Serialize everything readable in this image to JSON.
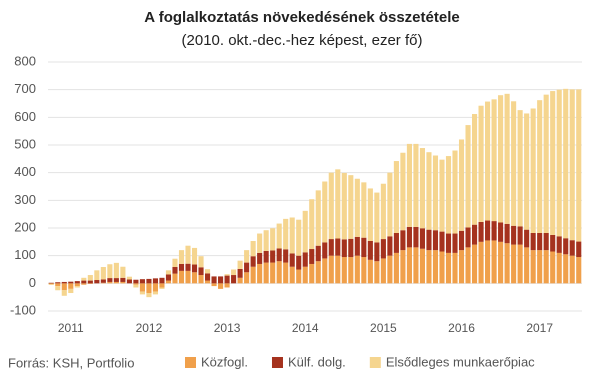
{
  "chart_data": {
    "type": "stacked-bar",
    "title": "A foglalkoztatás növekedésének összetétele",
    "subtitle": "(2010. okt.-dec.-hez képest, ezer fő)",
    "source": "Forrás: KSH, Portfolio",
    "categories": [
      null,
      null,
      null,
      "2011",
      null,
      null,
      null,
      null,
      null,
      null,
      null,
      null,
      null,
      null,
      null,
      "2012",
      null,
      null,
      null,
      null,
      null,
      null,
      null,
      null,
      null,
      null,
      null,
      "2013",
      null,
      null,
      null,
      null,
      null,
      null,
      null,
      null,
      null,
      null,
      null,
      "2014",
      null,
      null,
      null,
      null,
      null,
      null,
      null,
      null,
      null,
      null,
      null,
      "2015",
      null,
      null,
      null,
      null,
      null,
      null,
      null,
      null,
      null,
      null,
      null,
      "2016",
      null,
      null,
      null,
      null,
      null,
      null,
      null,
      null,
      null,
      null,
      null,
      "2017",
      null,
      null,
      null,
      null,
      null,
      null
    ],
    "series": [
      {
        "name": "Közfogl.",
        "color": "#f0a04b",
        "values": [
          -3,
          -10,
          -25,
          -20,
          -10,
          -5,
          -2,
          0,
          2,
          5,
          5,
          5,
          0,
          -5,
          -30,
          -35,
          -30,
          -15,
          10,
          35,
          45,
          45,
          40,
          30,
          10,
          -10,
          -20,
          -15,
          0,
          20,
          40,
          60,
          70,
          75,
          75,
          80,
          75,
          60,
          50,
          60,
          70,
          80,
          90,
          100,
          100,
          95,
          95,
          100,
          95,
          85,
          80,
          90,
          100,
          110,
          120,
          130,
          130,
          125,
          120,
          120,
          115,
          110,
          110,
          120,
          130,
          140,
          150,
          155,
          155,
          150,
          145,
          140,
          140,
          130,
          120,
          120,
          120,
          115,
          110,
          105,
          100,
          95
        ]
      },
      {
        "name": "Külf. dolg.",
        "color": "#a5321e",
        "values": [
          2,
          4,
          5,
          6,
          8,
          10,
          10,
          12,
          12,
          14,
          14,
          15,
          14,
          13,
          15,
          16,
          18,
          20,
          22,
          24,
          25,
          26,
          28,
          28,
          26,
          25,
          25,
          28,
          30,
          32,
          35,
          38,
          40,
          42,
          44,
          46,
          48,
          48,
          50,
          52,
          54,
          56,
          58,
          60,
          62,
          64,
          66,
          68,
          70,
          68,
          68,
          70,
          70,
          72,
          72,
          74,
          74,
          74,
          74,
          72,
          72,
          70,
          70,
          70,
          72,
          72,
          72,
          72,
          70,
          70,
          70,
          68,
          66,
          64,
          62,
          62,
          62,
          60,
          60,
          58,
          56,
          56
        ]
      },
      {
        "name": "Elsődleges munkaerőpiac",
        "color": "#f5d58f",
        "values": [
          -3,
          -15,
          -20,
          -15,
          -5,
          10,
          20,
          35,
          45,
          50,
          55,
          40,
          10,
          -10,
          -10,
          -15,
          -10,
          -5,
          15,
          30,
          50,
          65,
          60,
          40,
          15,
          0,
          0,
          5,
          20,
          30,
          45,
          55,
          70,
          75,
          80,
          90,
          110,
          130,
          130,
          150,
          180,
          200,
          220,
          240,
          250,
          240,
          230,
          210,
          200,
          190,
          180,
          200,
          230,
          260,
          280,
          300,
          300,
          290,
          280,
          270,
          260,
          280,
          300,
          330,
          370,
          400,
          420,
          430,
          440,
          460,
          470,
          450,
          420,
          420,
          450,
          480,
          500,
          520,
          530,
          540,
          545,
          550
        ]
      }
    ],
    "ylim": [
      -100,
      800
    ],
    "yticks": [
      -100,
      0,
      100,
      200,
      300,
      400,
      500,
      600,
      700,
      800
    ],
    "grid": true
  }
}
